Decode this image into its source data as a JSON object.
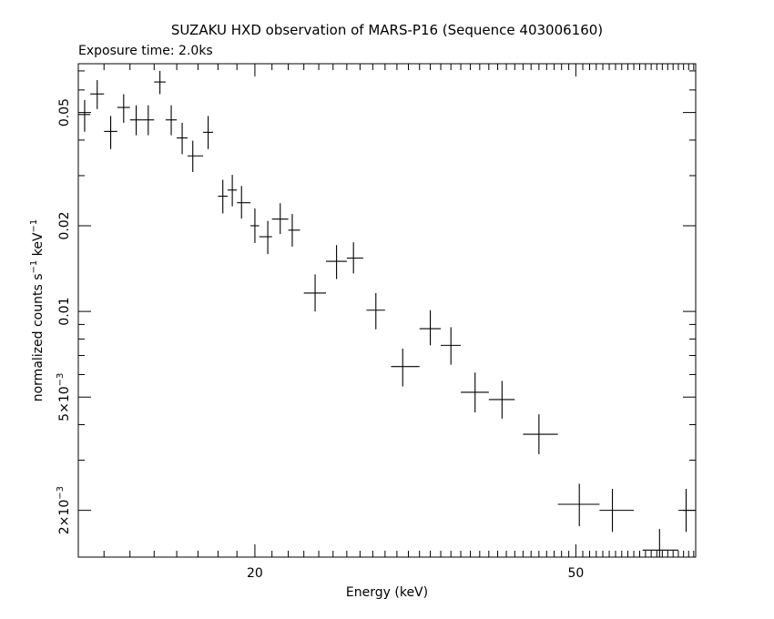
{
  "chart_data": {
    "type": "scatter",
    "title": "SUZAKU HXD observation of MARS-P16 (Sequence 403006160)",
    "subtitle": "Exposure time: 2.0ks",
    "xlabel": "Energy (keV)",
    "ylabel": {
      "base": "normalized counts s",
      "sup1": "−1",
      "mid": " keV",
      "sup2": "−1"
    },
    "xscale": "log",
    "yscale": "log",
    "xlim": [
      12.08,
      70.4
    ],
    "ylim": [
      0.00137,
      0.0742
    ],
    "x_ticks": [
      "20",
      "50"
    ],
    "y_ticks": [
      {
        "value": 0.05,
        "label": "0.05"
      },
      {
        "value": 0.02,
        "label": "0.02"
      },
      {
        "value": 0.01,
        "label": "0.01"
      },
      {
        "value": 0.005,
        "mant": "5×10",
        "exp": "−3"
      },
      {
        "value": 0.002,
        "mant": "2×10",
        "exp": "−3"
      }
    ],
    "series": [
      {
        "points": [
          {
            "x": 12.3,
            "xerr": [
              12.08,
              12.5
            ],
            "y": 0.0492,
            "yerr": [
              0.0428,
              0.0553
            ]
          },
          {
            "x": 12.75,
            "xerr": [
              12.5,
              13.0
            ],
            "y": 0.0581,
            "yerr": [
              0.0514,
              0.065
            ]
          },
          {
            "x": 13.25,
            "xerr": [
              13.0,
              13.5
            ],
            "y": 0.0429,
            "yerr": [
              0.0372,
              0.0486
            ]
          },
          {
            "x": 13.75,
            "xerr": [
              13.5,
              14.0
            ],
            "y": 0.0521,
            "yerr": [
              0.046,
              0.058
            ]
          },
          {
            "x": 14.25,
            "xerr": [
              14.0,
              14.5
            ],
            "y": 0.0471,
            "yerr": [
              0.0416,
              0.053
            ]
          },
          {
            "x": 14.75,
            "xerr": [
              14.5,
              15.0
            ],
            "y": 0.0471,
            "yerr": [
              0.0416,
              0.053
            ]
          },
          {
            "x": 15.25,
            "xerr": [
              15.0,
              15.5
            ],
            "y": 0.064,
            "yerr": [
              0.058,
              0.07
            ]
          },
          {
            "x": 15.75,
            "xerr": [
              15.5,
              16.0
            ],
            "y": 0.0471,
            "yerr": [
              0.0416,
              0.053
            ]
          },
          {
            "x": 16.25,
            "xerr": [
              16.0,
              16.5
            ],
            "y": 0.0407,
            "yerr": [
              0.0357,
              0.046
            ]
          },
          {
            "x": 16.75,
            "xerr": [
              16.5,
              17.25
            ],
            "y": 0.0352,
            "yerr": [
              0.0309,
              0.0398
            ]
          },
          {
            "x": 17.5,
            "xerr": [
              17.25,
              17.75
            ],
            "y": 0.0426,
            "yerr": [
              0.0372,
              0.0486
            ]
          },
          {
            "x": 18.25,
            "xerr": [
              18.0,
              18.5
            ],
            "y": 0.0254,
            "yerr": [
              0.0221,
              0.029
            ]
          },
          {
            "x": 18.75,
            "xerr": [
              18.5,
              19.0
            ],
            "y": 0.0267,
            "yerr": [
              0.0234,
              0.0302
            ]
          },
          {
            "x": 19.25,
            "xerr": [
              19.0,
              19.75
            ],
            "y": 0.0241,
            "yerr": [
              0.0212,
              0.0276
            ]
          },
          {
            "x": 20.0,
            "xerr": [
              19.75,
              20.25
            ],
            "y": 0.02,
            "yerr": [
              0.0174,
              0.023
            ]
          },
          {
            "x": 20.75,
            "xerr": [
              20.25,
              21.0
            ],
            "y": 0.0183,
            "yerr": [
              0.0159,
              0.0208
            ]
          },
          {
            "x": 21.5,
            "xerr": [
              21.0,
              22.0
            ],
            "y": 0.0211,
            "yerr": [
              0.0187,
              0.024
            ]
          },
          {
            "x": 22.25,
            "xerr": [
              22.0,
              22.75
            ],
            "y": 0.0193,
            "yerr": [
              0.0169,
              0.022
            ]
          },
          {
            "x": 23.75,
            "xerr": [
              23.0,
              24.5
            ],
            "y": 0.0116,
            "yerr": [
              0.01,
              0.0135
            ]
          },
          {
            "x": 25.25,
            "xerr": [
              24.5,
              26.0
            ],
            "y": 0.015,
            "yerr": [
              0.013,
              0.0171
            ]
          },
          {
            "x": 26.5,
            "xerr": [
              26.0,
              27.25
            ],
            "y": 0.0154,
            "yerr": [
              0.0136,
              0.0175
            ]
          },
          {
            "x": 28.25,
            "xerr": [
              27.5,
              29.0
            ],
            "y": 0.0101,
            "yerr": [
              0.00865,
              0.0116
            ]
          },
          {
            "x": 30.5,
            "xerr": [
              29.5,
              32.0
            ],
            "y": 0.0064,
            "yerr": [
              0.00545,
              0.0074
            ]
          },
          {
            "x": 33.0,
            "xerr": [
              32.0,
              34.0
            ],
            "y": 0.0087,
            "yerr": [
              0.0076,
              0.0101
            ]
          },
          {
            "x": 35.0,
            "xerr": [
              34.0,
              36.0
            ],
            "y": 0.0076,
            "yerr": [
              0.0065,
              0.0088
            ]
          },
          {
            "x": 37.5,
            "xerr": [
              36.0,
              39.0
            ],
            "y": 0.0052,
            "yerr": [
              0.00442,
              0.0061
            ]
          },
          {
            "x": 40.5,
            "xerr": [
              39.0,
              42.0
            ],
            "y": 0.0049,
            "yerr": [
              0.0042,
              0.0057
            ]
          },
          {
            "x": 45.0,
            "xerr": [
              43.0,
              47.5
            ],
            "y": 0.0037,
            "yerr": [
              0.00315,
              0.00435
            ]
          },
          {
            "x": 50.5,
            "xerr": [
              47.5,
              53.5
            ],
            "y": 0.0021,
            "yerr": [
              0.00176,
              0.00248
            ]
          },
          {
            "x": 55.5,
            "xerr": [
              53.5,
              59.0
            ],
            "y": 0.002,
            "yerr": [
              0.00168,
              0.00238
            ]
          },
          {
            "x": 63.5,
            "xerr": [
              60.5,
              67.0
            ],
            "y": 0.00145,
            "yerr": [
              0.00137,
              0.00172
            ]
          },
          {
            "x": 68.5,
            "xerr": [
              67.0,
              70.4
            ],
            "y": 0.002,
            "yerr": [
              0.00168,
              0.00238
            ]
          }
        ]
      }
    ]
  }
}
